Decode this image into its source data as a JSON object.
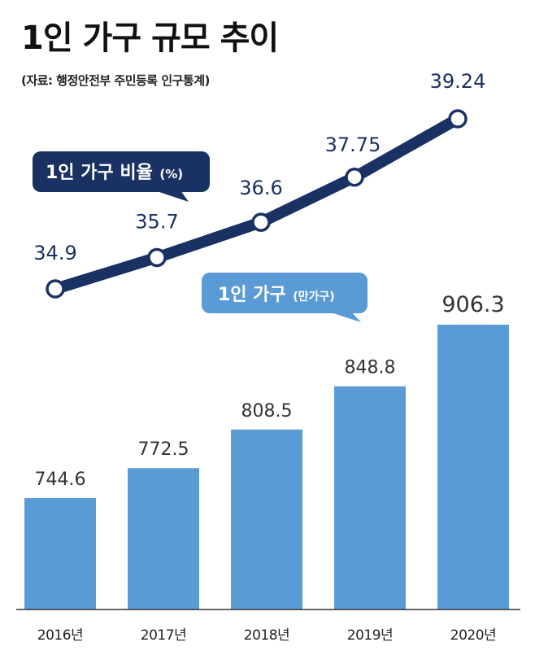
{
  "title": "1인 가구 규모 추이",
  "source": "(자료: 행정안전부 주민등록 인구통계)",
  "legend": {
    "line_label": "1인 가구 비율",
    "line_unit": "(%)",
    "bar_label": "1인 가구",
    "bar_unit": "(만가구)"
  },
  "colors": {
    "line": "#1a3163",
    "bar": "#5b9bd5",
    "callout_bar": "#5b9bd5",
    "callout_line": "#1a3163"
  },
  "chart_data": {
    "type": "bar",
    "categories": [
      "2016년",
      "2017년",
      "2018년",
      "2019년",
      "2020년"
    ],
    "series": [
      {
        "name": "1인 가구(만가구)",
        "type": "bar",
        "values": [
          744.6,
          772.5,
          808.5,
          848.8,
          906.3
        ],
        "labels": [
          "744.6",
          "772.5",
          "808.5",
          "848.8",
          "906.3"
        ]
      },
      {
        "name": "1인 가구 비율(%)",
        "type": "line",
        "values": [
          34.9,
          35.7,
          36.6,
          37.75,
          39.24
        ],
        "labels": [
          "34.9",
          "35.7",
          "36.6",
          "37.75",
          "39.24"
        ]
      }
    ]
  }
}
